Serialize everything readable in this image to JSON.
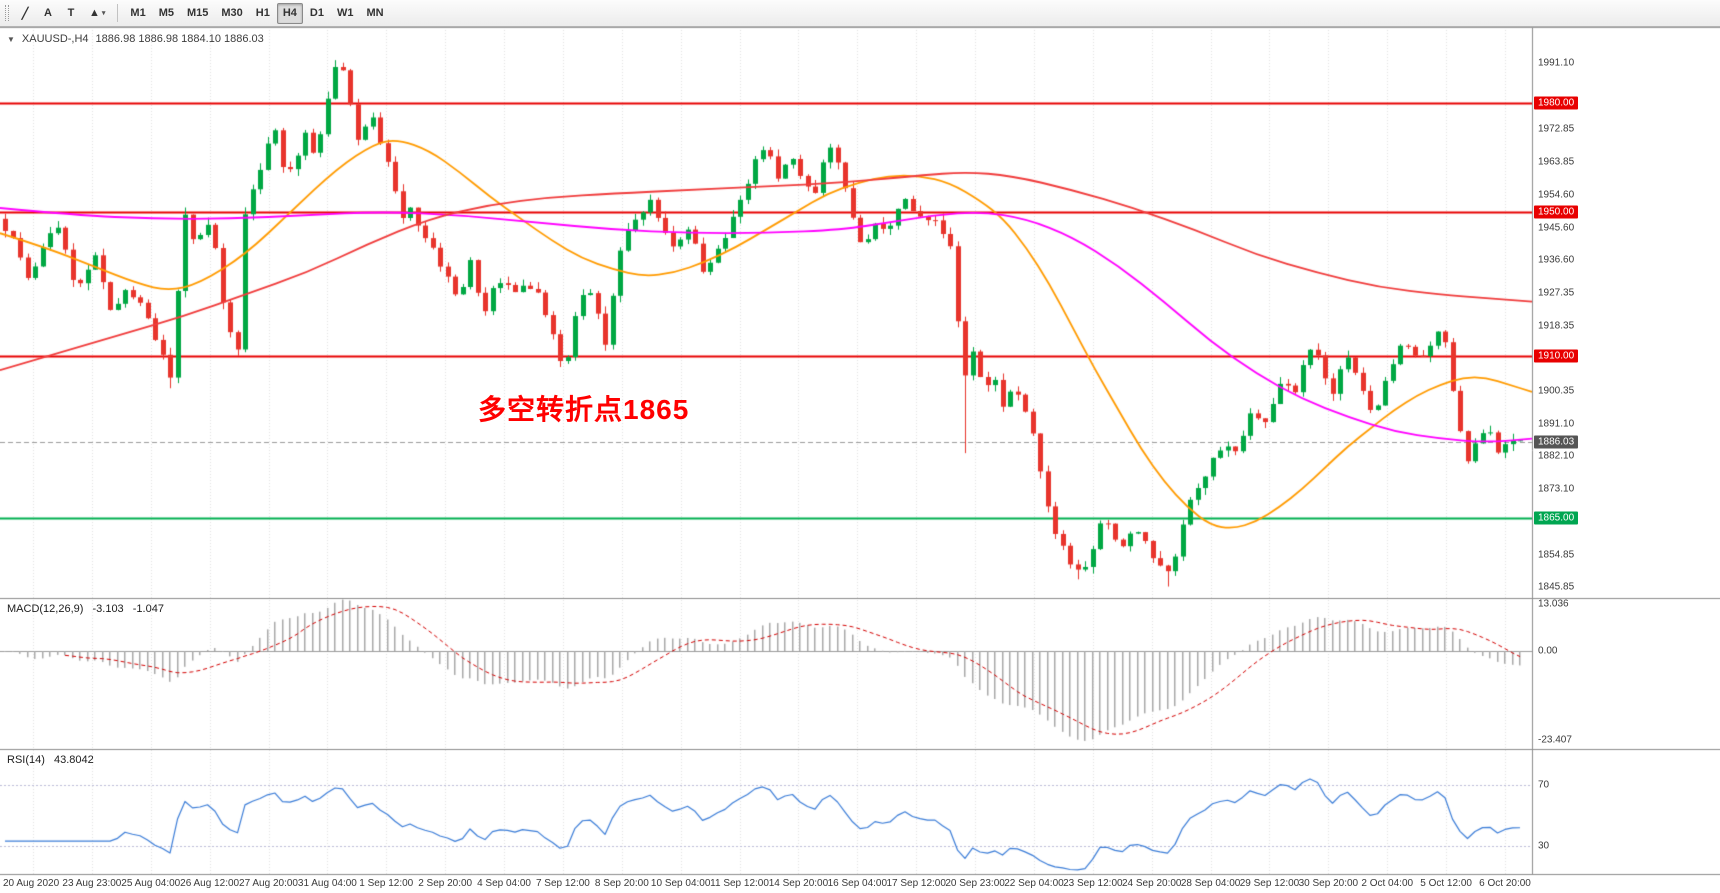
{
  "toolbar": {
    "tools": [
      {
        "id": "trendline-tool",
        "glyph": "╱"
      },
      {
        "id": "text-annotation-tool",
        "glyph": "A"
      },
      {
        "id": "text-tool",
        "glyph": "T"
      },
      {
        "id": "shapes-tool",
        "glyph": "▲",
        "dropdown": "▾"
      }
    ],
    "timeframes": [
      "M1",
      "M5",
      "M15",
      "M30",
      "H1",
      "H4",
      "D1",
      "W1",
      "MN"
    ],
    "active_timeframe": "H4"
  },
  "symbol_info": {
    "dropdown_glyph": "▼",
    "symbol": "XAUUSD-,H4",
    "ohlc": "1886.98 1886.98 1884.10 1886.03"
  },
  "annotation": {
    "text": "多空转折点1865",
    "color": "#ff0000"
  },
  "macd": {
    "name": "MACD(12,26,9)",
    "value_main": "-3.103",
    "value_signal": "-1.047",
    "axis": {
      "top": "13.036",
      "zero": "0.00",
      "bottom": "-23.407"
    },
    "histogram_color": "#a9a9a9",
    "signal_color": "#d40000"
  },
  "rsi": {
    "name": "RSI(14)",
    "value": "43.8042",
    "levels": {
      "overbought": "70",
      "oversold": "30"
    },
    "line_color": "#3b7dd8"
  },
  "price_axis": {
    "ticks": [
      1991.1,
      1972.85,
      1963.85,
      1954.6,
      1945.6,
      1936.6,
      1927.35,
      1918.35,
      1900.35,
      1891.1,
      1882.1,
      1873.1,
      1854.85,
      1845.85
    ],
    "badges": [
      {
        "label": "1980.00",
        "price": 1980.0,
        "color": "#e80000"
      },
      {
        "label": "1950.00",
        "price": 1950.0,
        "color": "#e80000"
      },
      {
        "label": "1910.00",
        "price": 1910.0,
        "color": "#e80000"
      },
      {
        "label": "1886.03",
        "price": 1886.03,
        "color": "#555555"
      },
      {
        "label": "1865.00",
        "price": 1865.0,
        "color": "#00a651"
      }
    ]
  },
  "time_axis": {
    "labels": [
      "20 Aug 2020",
      "23 Aug 23:00",
      "25 Aug 04:00",
      "26 Aug 12:00",
      "27 Aug 20:00",
      "31 Aug 04:00",
      "1 Sep 12:00",
      "2 Sep 20:00",
      "4 Sep 04:00",
      "7 Sep 12:00",
      "8 Sep 20:00",
      "10 Sep 04:00",
      "11 Sep 12:00",
      "14 Sep 20:00",
      "16 Sep 04:00",
      "17 Sep 12:00",
      "20 Sep 23:00",
      "22 Sep 04:00",
      "23 Sep 12:00",
      "24 Sep 20:00",
      "28 Sep 04:00",
      "29 Sep 12:00",
      "30 Sep 20:00",
      "2 Oct 04:00",
      "5 Oct 12:00",
      "6 Oct 20:00"
    ]
  },
  "chart_data": {
    "type": "candlestick",
    "symbol": "XAUUSD",
    "timeframe": "H4",
    "title": "XAUUSD-,H4",
    "current_price": 1886.03,
    "visible_price_range": [
      1845.85,
      1991.1
    ],
    "candle_up_color": "#00a843",
    "candle_down_color": "#e8342c",
    "horizontal_levels": [
      {
        "price": 1980.0,
        "color": "#e80000"
      },
      {
        "price": 1950.0,
        "color": "#e80000"
      },
      {
        "price": 1910.0,
        "color": "#e80000"
      },
      {
        "price": 1865.0,
        "color": "#00b050"
      }
    ],
    "bid_line": {
      "price": 1886.03,
      "color": "#9a9a9a"
    },
    "price_path": [
      [
        0.0,
        1948
      ],
      [
        0.013,
        1938
      ],
      [
        0.02,
        1930
      ],
      [
        0.029,
        1942
      ],
      [
        0.039,
        1945
      ],
      [
        0.049,
        1928
      ],
      [
        0.062,
        1938
      ],
      [
        0.072,
        1922
      ],
      [
        0.082,
        1928
      ],
      [
        0.092,
        1924
      ],
      [
        0.101,
        1915
      ],
      [
        0.111,
        1904
      ],
      [
        0.116,
        1928
      ],
      [
        0.121,
        1950
      ],
      [
        0.127,
        1940
      ],
      [
        0.134,
        1948
      ],
      [
        0.141,
        1938
      ],
      [
        0.147,
        1920
      ],
      [
        0.155,
        1911
      ],
      [
        0.16,
        1950
      ],
      [
        0.167,
        1958
      ],
      [
        0.173,
        1968
      ],
      [
        0.18,
        1972
      ],
      [
        0.186,
        1960
      ],
      [
        0.193,
        1965
      ],
      [
        0.199,
        1972
      ],
      [
        0.206,
        1964
      ],
      [
        0.212,
        1978
      ],
      [
        0.219,
        1991
      ],
      [
        0.225,
        1988
      ],
      [
        0.23,
        1975
      ],
      [
        0.235,
        1968
      ],
      [
        0.242,
        1978
      ],
      [
        0.248,
        1970
      ],
      [
        0.255,
        1962
      ],
      [
        0.261,
        1948
      ],
      [
        0.268,
        1952
      ],
      [
        0.275,
        1944
      ],
      [
        0.282,
        1940
      ],
      [
        0.291,
        1932
      ],
      [
        0.299,
        1926
      ],
      [
        0.307,
        1936
      ],
      [
        0.315,
        1920
      ],
      [
        0.324,
        1932
      ],
      [
        0.333,
        1928
      ],
      [
        0.343,
        1930
      ],
      [
        0.353,
        1926
      ],
      [
        0.363,
        1912
      ],
      [
        0.369,
        1905
      ],
      [
        0.378,
        1928
      ],
      [
        0.387,
        1926
      ],
      [
        0.395,
        1912
      ],
      [
        0.4,
        1928
      ],
      [
        0.407,
        1944
      ],
      [
        0.415,
        1948
      ],
      [
        0.425,
        1954
      ],
      [
        0.433,
        1944
      ],
      [
        0.441,
        1940
      ],
      [
        0.451,
        1946
      ],
      [
        0.459,
        1932
      ],
      [
        0.467,
        1938
      ],
      [
        0.476,
        1946
      ],
      [
        0.484,
        1954
      ],
      [
        0.491,
        1962
      ],
      [
        0.5,
        1970
      ],
      [
        0.508,
        1958
      ],
      [
        0.516,
        1966
      ],
      [
        0.524,
        1958
      ],
      [
        0.533,
        1954
      ],
      [
        0.539,
        1970
      ],
      [
        0.548,
        1962
      ],
      [
        0.556,
        1948
      ],
      [
        0.563,
        1940
      ],
      [
        0.572,
        1948
      ],
      [
        0.58,
        1944
      ],
      [
        0.588,
        1954
      ],
      [
        0.596,
        1950
      ],
      [
        0.605,
        1948
      ],
      [
        0.613,
        1946
      ],
      [
        0.621,
        1940
      ],
      [
        0.626,
        1915
      ],
      [
        0.631,
        1902
      ],
      [
        0.635,
        1912
      ],
      [
        0.642,
        1900
      ],
      [
        0.648,
        1906
      ],
      [
        0.655,
        1894
      ],
      [
        0.661,
        1902
      ],
      [
        0.668,
        1896
      ],
      [
        0.675,
        1886
      ],
      [
        0.681,
        1872
      ],
      [
        0.688,
        1862
      ],
      [
        0.694,
        1856
      ],
      [
        0.7,
        1852
      ],
      [
        0.707,
        1850
      ],
      [
        0.714,
        1857
      ],
      [
        0.72,
        1866
      ],
      [
        0.727,
        1860
      ],
      [
        0.733,
        1856
      ],
      [
        0.74,
        1864
      ],
      [
        0.747,
        1858
      ],
      [
        0.753,
        1854
      ],
      [
        0.76,
        1849
      ],
      [
        0.766,
        1852
      ],
      [
        0.773,
        1865
      ],
      [
        0.779,
        1872
      ],
      [
        0.786,
        1876
      ],
      [
        0.792,
        1882
      ],
      [
        0.799,
        1886
      ],
      [
        0.805,
        1882
      ],
      [
        0.812,
        1889
      ],
      [
        0.818,
        1896
      ],
      [
        0.825,
        1890
      ],
      [
        0.831,
        1898
      ],
      [
        0.838,
        1904
      ],
      [
        0.845,
        1899
      ],
      [
        0.851,
        1908
      ],
      [
        0.858,
        1913
      ],
      [
        0.864,
        1904
      ],
      [
        0.871,
        1899
      ],
      [
        0.877,
        1912
      ],
      [
        0.884,
        1906
      ],
      [
        0.89,
        1899
      ],
      [
        0.897,
        1894
      ],
      [
        0.903,
        1901
      ],
      [
        0.91,
        1910
      ],
      [
        0.916,
        1915
      ],
      [
        0.923,
        1911
      ],
      [
        0.929,
        1910
      ],
      [
        0.936,
        1916
      ],
      [
        0.941,
        1919
      ],
      [
        0.946,
        1906
      ],
      [
        0.952,
        1892
      ],
      [
        0.957,
        1879
      ],
      [
        0.963,
        1886
      ],
      [
        0.97,
        1891
      ],
      [
        0.977,
        1883
      ],
      [
        0.983,
        1886
      ],
      [
        0.99,
        1888
      ],
      [
        0.996,
        1886.03
      ]
    ],
    "extreme_wicks": [
      {
        "frac": 0.111,
        "low": 1901
      },
      {
        "frac": 0.219,
        "high": 1992
      },
      {
        "frac": 0.63,
        "low": 1883
      },
      {
        "frac": 0.704,
        "low": 1848
      },
      {
        "frac": 0.76,
        "low": 1846
      }
    ],
    "moving_averages": [
      {
        "name": "fast-ma",
        "color": "#ff9b00",
        "points": [
          [
            0.0,
            1944
          ],
          [
            0.03,
            1940
          ],
          [
            0.06,
            1935
          ],
          [
            0.09,
            1930
          ],
          [
            0.11,
            1928
          ],
          [
            0.13,
            1930
          ],
          [
            0.16,
            1938
          ],
          [
            0.19,
            1950
          ],
          [
            0.22,
            1962
          ],
          [
            0.245,
            1969
          ],
          [
            0.26,
            1970
          ],
          [
            0.28,
            1967
          ],
          [
            0.3,
            1961
          ],
          [
            0.32,
            1954
          ],
          [
            0.34,
            1948
          ],
          [
            0.36,
            1942
          ],
          [
            0.38,
            1937
          ],
          [
            0.4,
            1934
          ],
          [
            0.42,
            1932
          ],
          [
            0.44,
            1933
          ],
          [
            0.46,
            1936
          ],
          [
            0.48,
            1940
          ],
          [
            0.5,
            1945
          ],
          [
            0.52,
            1950
          ],
          [
            0.54,
            1955
          ],
          [
            0.56,
            1958
          ],
          [
            0.58,
            1960
          ],
          [
            0.6,
            1960
          ],
          [
            0.62,
            1958
          ],
          [
            0.64,
            1953
          ],
          [
            0.655,
            1948
          ],
          [
            0.67,
            1940
          ],
          [
            0.685,
            1930
          ],
          [
            0.7,
            1918
          ],
          [
            0.715,
            1906
          ],
          [
            0.73,
            1895
          ],
          [
            0.745,
            1884
          ],
          [
            0.76,
            1875
          ],
          [
            0.775,
            1868
          ],
          [
            0.79,
            1863
          ],
          [
            0.805,
            1862
          ],
          [
            0.82,
            1864
          ],
          [
            0.835,
            1868
          ],
          [
            0.85,
            1873
          ],
          [
            0.865,
            1879
          ],
          [
            0.88,
            1885
          ],
          [
            0.895,
            1890
          ],
          [
            0.91,
            1895
          ],
          [
            0.925,
            1899
          ],
          [
            0.94,
            1902
          ],
          [
            0.955,
            1904
          ],
          [
            0.97,
            1904
          ],
          [
            0.985,
            1902
          ],
          [
            1.0,
            1900
          ]
        ]
      },
      {
        "name": "mid-ma",
        "color": "#ff00ff",
        "points": [
          [
            0.0,
            1951
          ],
          [
            0.05,
            1949
          ],
          [
            0.1,
            1948
          ],
          [
            0.15,
            1948
          ],
          [
            0.2,
            1949
          ],
          [
            0.25,
            1950
          ],
          [
            0.3,
            1949
          ],
          [
            0.35,
            1947
          ],
          [
            0.4,
            1945
          ],
          [
            0.45,
            1944
          ],
          [
            0.5,
            1944
          ],
          [
            0.55,
            1945
          ],
          [
            0.58,
            1947
          ],
          [
            0.61,
            1949
          ],
          [
            0.64,
            1950
          ],
          [
            0.67,
            1948
          ],
          [
            0.7,
            1943
          ],
          [
            0.73,
            1935
          ],
          [
            0.76,
            1925
          ],
          [
            0.79,
            1914
          ],
          [
            0.82,
            1905
          ],
          [
            0.85,
            1898
          ],
          [
            0.88,
            1893
          ],
          [
            0.91,
            1889
          ],
          [
            0.94,
            1887
          ],
          [
            0.97,
            1886
          ],
          [
            1.0,
            1887
          ]
        ]
      },
      {
        "name": "slow-ma",
        "color": "#f03c3c",
        "points": [
          [
            0.0,
            1906
          ],
          [
            0.04,
            1911
          ],
          [
            0.08,
            1916
          ],
          [
            0.12,
            1921
          ],
          [
            0.16,
            1927
          ],
          [
            0.2,
            1933
          ],
          [
            0.24,
            1941
          ],
          [
            0.28,
            1948
          ],
          [
            0.32,
            1952
          ],
          [
            0.36,
            1954
          ],
          [
            0.4,
            1955
          ],
          [
            0.45,
            1956
          ],
          [
            0.5,
            1957
          ],
          [
            0.55,
            1958
          ],
          [
            0.6,
            1960
          ],
          [
            0.63,
            1961
          ],
          [
            0.66,
            1960
          ],
          [
            0.7,
            1956
          ],
          [
            0.74,
            1951
          ],
          [
            0.78,
            1945
          ],
          [
            0.82,
            1938
          ],
          [
            0.86,
            1933
          ],
          [
            0.9,
            1929
          ],
          [
            0.94,
            1927
          ],
          [
            0.97,
            1926
          ],
          [
            1.0,
            1925
          ]
        ]
      }
    ],
    "indicators": [
      {
        "name": "MACD",
        "params": [
          12,
          26,
          9
        ],
        "last_main": -3.103,
        "last_signal": -1.047,
        "axis_max": 13.036,
        "axis_min": -23.407
      },
      {
        "name": "RSI",
        "params": [
          14
        ],
        "last_value": 43.8042,
        "levels": [
          70,
          30
        ]
      }
    ]
  }
}
